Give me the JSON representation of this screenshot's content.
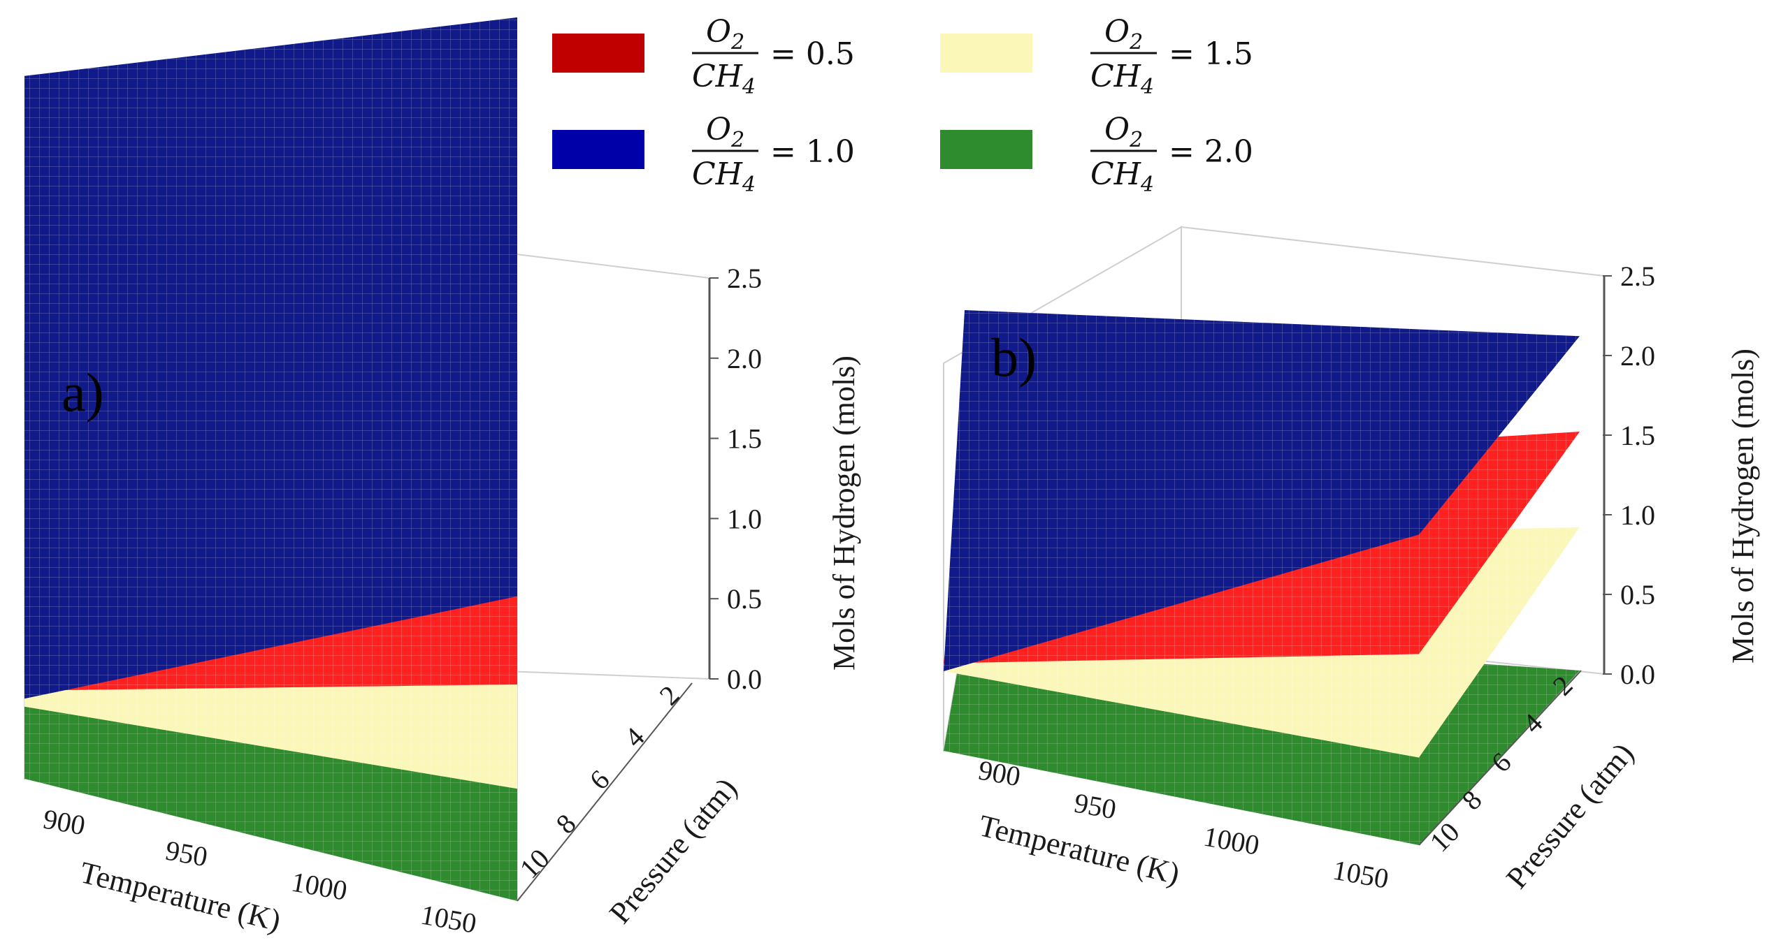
{
  "legend": {
    "items": [
      {
        "num": "O",
        "num_sub": "2",
        "den": "CH",
        "den_sub": "4",
        "eq": "= 0.5",
        "color": "#c00000"
      },
      {
        "num": "O",
        "num_sub": "2",
        "den": "CH",
        "den_sub": "4",
        "eq": "= 1.5",
        "color": "#fbf7b9"
      },
      {
        "num": "O",
        "num_sub": "2",
        "den": "CH",
        "den_sub": "4",
        "eq": "= 1.0",
        "color": "#0000a8"
      },
      {
        "num": "O",
        "num_sub": "2",
        "den": "CH",
        "den_sub": "4",
        "eq": "= 2.0",
        "color": "#2e8b2e"
      }
    ]
  },
  "chart_data": [
    {
      "type": "surface3d",
      "panel_label": "a)",
      "xlabel": "Temperature (K)",
      "ylabel": "Pressure (atm)",
      "zlabel": "Mols of Hydrogen (mols)",
      "x_ticks": [
        "900",
        "950",
        "1000",
        "1050"
      ],
      "y_ticks": [
        "2",
        "4",
        "6",
        "8",
        "10"
      ],
      "z_ticks": [
        "0.0",
        "0.5",
        "1.0",
        "1.5",
        "2.0",
        "2.5"
      ],
      "xlim": [
        880,
        1080
      ],
      "ylim": [
        2,
        10
      ],
      "zlim": [
        0.0,
        2.5
      ],
      "series": [
        {
          "name": "O2/CH4 = 2.0",
          "color": "#2e8b2e",
          "corner_values": {
            "Tmin_P2": 0.0,
            "Tmax_P2": 0.0,
            "Tmax_P10": 0.0,
            "Tmin_P10": 0.0
          }
        },
        {
          "name": "O2/CH4 = 1.5",
          "color": "#fbf7b9",
          "corner_values": {
            "Tmin_P2": 0.5,
            "Tmax_P2": 0.75,
            "Tmax_P10": 0.7,
            "Tmin_P10": 0.45
          }
        },
        {
          "name": "O2/CH4 = 0.5",
          "color": "#ff2020",
          "corner_values": {
            "Tmin_P2": 0.6,
            "Tmax_P2": 1.5,
            "Tmax_P10": 1.35,
            "Tmin_P10": 0.55
          }
        },
        {
          "name": "O2/CH4 = 1.0",
          "color": "#101a8a",
          "corner_values": {
            "Tmin_P2": 2.0,
            "Tmax_P2": 2.2,
            "Tmax_P10": 1.9,
            "Tmin_P10": 0.5
          }
        }
      ]
    },
    {
      "type": "surface3d",
      "panel_label": "b)",
      "xlabel": "Temperature (K)",
      "ylabel": "Pressure (atm)",
      "zlabel": "Mols of Hydrogen (mols)",
      "x_ticks": [
        "900",
        "950",
        "1000",
        "1050"
      ],
      "y_ticks": [
        "2",
        "4",
        "6",
        "8",
        "10"
      ],
      "z_ticks": [
        "0.0",
        "0.5",
        "1.0",
        "1.5",
        "2.0",
        "2.5"
      ],
      "xlim": [
        880,
        1080
      ],
      "ylim": [
        2,
        10
      ],
      "zlim": [
        0.0,
        2.5
      ],
      "series": [
        {
          "name": "O2/CH4 = 2.0",
          "color": "#2e8b2e",
          "corner_values": {
            "Tmin_P2": 0.0,
            "Tmax_P2": 0.0,
            "Tmax_P10": 0.0,
            "Tmin_P10": 0.0
          }
        },
        {
          "name": "O2/CH4 = 1.5",
          "color": "#fbf7b9",
          "corner_values": {
            "Tmin_P2": 0.55,
            "Tmax_P2": 0.9,
            "Tmax_P10": 0.55,
            "Tmin_P10": 0.5
          }
        },
        {
          "name": "O2/CH4 = 0.5",
          "color": "#ff2020",
          "corner_values": {
            "Tmin_P2": 1.0,
            "Tmax_P2": 1.5,
            "Tmax_P10": 1.2,
            "Tmin_P10": 0.55
          }
        },
        {
          "name": "O2/CH4 = 1.0",
          "color": "#101a8a",
          "corner_values": {
            "Tmin_P2": 2.0,
            "Tmax_P2": 2.1,
            "Tmax_P10": 1.95,
            "Tmin_P10": 0.5
          }
        }
      ]
    }
  ]
}
